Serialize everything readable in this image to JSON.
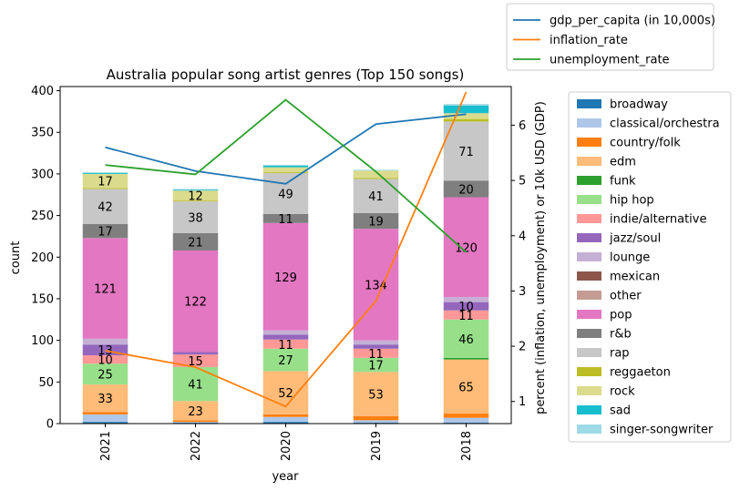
{
  "chart_data": {
    "type": "bar",
    "stacked": true,
    "title": "Australia popular song artist genres (Top 150 songs)",
    "xlabel": "year",
    "ylabel": "count",
    "y2label": "percent (inflation, unemployment) or 10k USD (GDP)",
    "categories": [
      "2021",
      "2022",
      "2020",
      "2019",
      "2018"
    ],
    "ylim": [
      0,
      405
    ],
    "yticks": [
      0,
      50,
      100,
      150,
      200,
      250,
      300,
      350,
      400
    ],
    "y2lim": [
      0.6,
      6.7
    ],
    "y2ticks": [
      1,
      2,
      3,
      4,
      5,
      6
    ],
    "grid": false,
    "legend_position": "right",
    "series": [
      {
        "name": "broadway",
        "color": "#1f77b4",
        "values": [
          2,
          1,
          2,
          1,
          1
        ]
      },
      {
        "name": "classical/orchestra",
        "color": "#aec7e8",
        "values": [
          9,
          1,
          6,
          3,
          6
        ]
      },
      {
        "name": "country/folk",
        "color": "#ff7f0e",
        "values": [
          3,
          2,
          3,
          5,
          5
        ]
      },
      {
        "name": "edm",
        "color": "#ffbb78",
        "values": [
          33,
          23,
          52,
          53,
          65
        ]
      },
      {
        "name": "funk",
        "color": "#2ca02c",
        "values": [
          0,
          0,
          0,
          0,
          2
        ]
      },
      {
        "name": "hip hop",
        "color": "#98df8a",
        "values": [
          25,
          41,
          27,
          17,
          46
        ]
      },
      {
        "name": "indie/alternative",
        "color": "#ff9896",
        "values": [
          10,
          15,
          11,
          11,
          11
        ]
      },
      {
        "name": "jazz/soul",
        "color": "#9467bd",
        "values": [
          13,
          3,
          6,
          5,
          10
        ]
      },
      {
        "name": "lounge",
        "color": "#c5b0d5",
        "values": [
          7,
          0,
          5,
          5,
          6
        ]
      },
      {
        "name": "mexican",
        "color": "#8c564b",
        "values": [
          0,
          0,
          0,
          0,
          0
        ]
      },
      {
        "name": "other",
        "color": "#c49c94",
        "values": [
          0,
          0,
          0,
          0,
          0
        ]
      },
      {
        "name": "pop",
        "color": "#e377c2",
        "values": [
          121,
          122,
          129,
          134,
          120
        ]
      },
      {
        "name": "r&b",
        "color": "#7f7f7f",
        "values": [
          17,
          21,
          11,
          19,
          20
        ]
      },
      {
        "name": "rap",
        "color": "#c7c7c7",
        "values": [
          42,
          38,
          49,
          41,
          71
        ]
      },
      {
        "name": "reggaeton",
        "color": "#bcbd22",
        "values": [
          1,
          1,
          1,
          1,
          3
        ]
      },
      {
        "name": "rock",
        "color": "#dbdb8d",
        "values": [
          17,
          12,
          6,
          9,
          7
        ]
      },
      {
        "name": "sad",
        "color": "#17becf",
        "values": [
          1,
          1,
          2,
          0,
          9
        ]
      },
      {
        "name": "singer-songwriter",
        "color": "#9edae5",
        "values": [
          1,
          1,
          1,
          1,
          2
        ]
      }
    ],
    "labeled_series": [
      "edm",
      "hip hop",
      "indie/alternative",
      "jazz/soul",
      "pop",
      "r&b",
      "rap",
      "rock"
    ],
    "label_min": 10,
    "lines": [
      {
        "name": "gdp_per_capita (in 10,000s)",
        "color": "#1f77b4",
        "values": [
          5.6,
          5.17,
          4.94,
          6.02,
          6.2
        ]
      },
      {
        "name": "inflation_rate",
        "color": "#ff7f0e",
        "values": [
          1.92,
          1.62,
          0.91,
          2.82,
          6.6
        ]
      },
      {
        "name": "unemployment_rate",
        "color": "#2ca02c",
        "values": [
          5.28,
          5.11,
          6.46,
          5.16,
          3.7
        ]
      }
    ]
  }
}
